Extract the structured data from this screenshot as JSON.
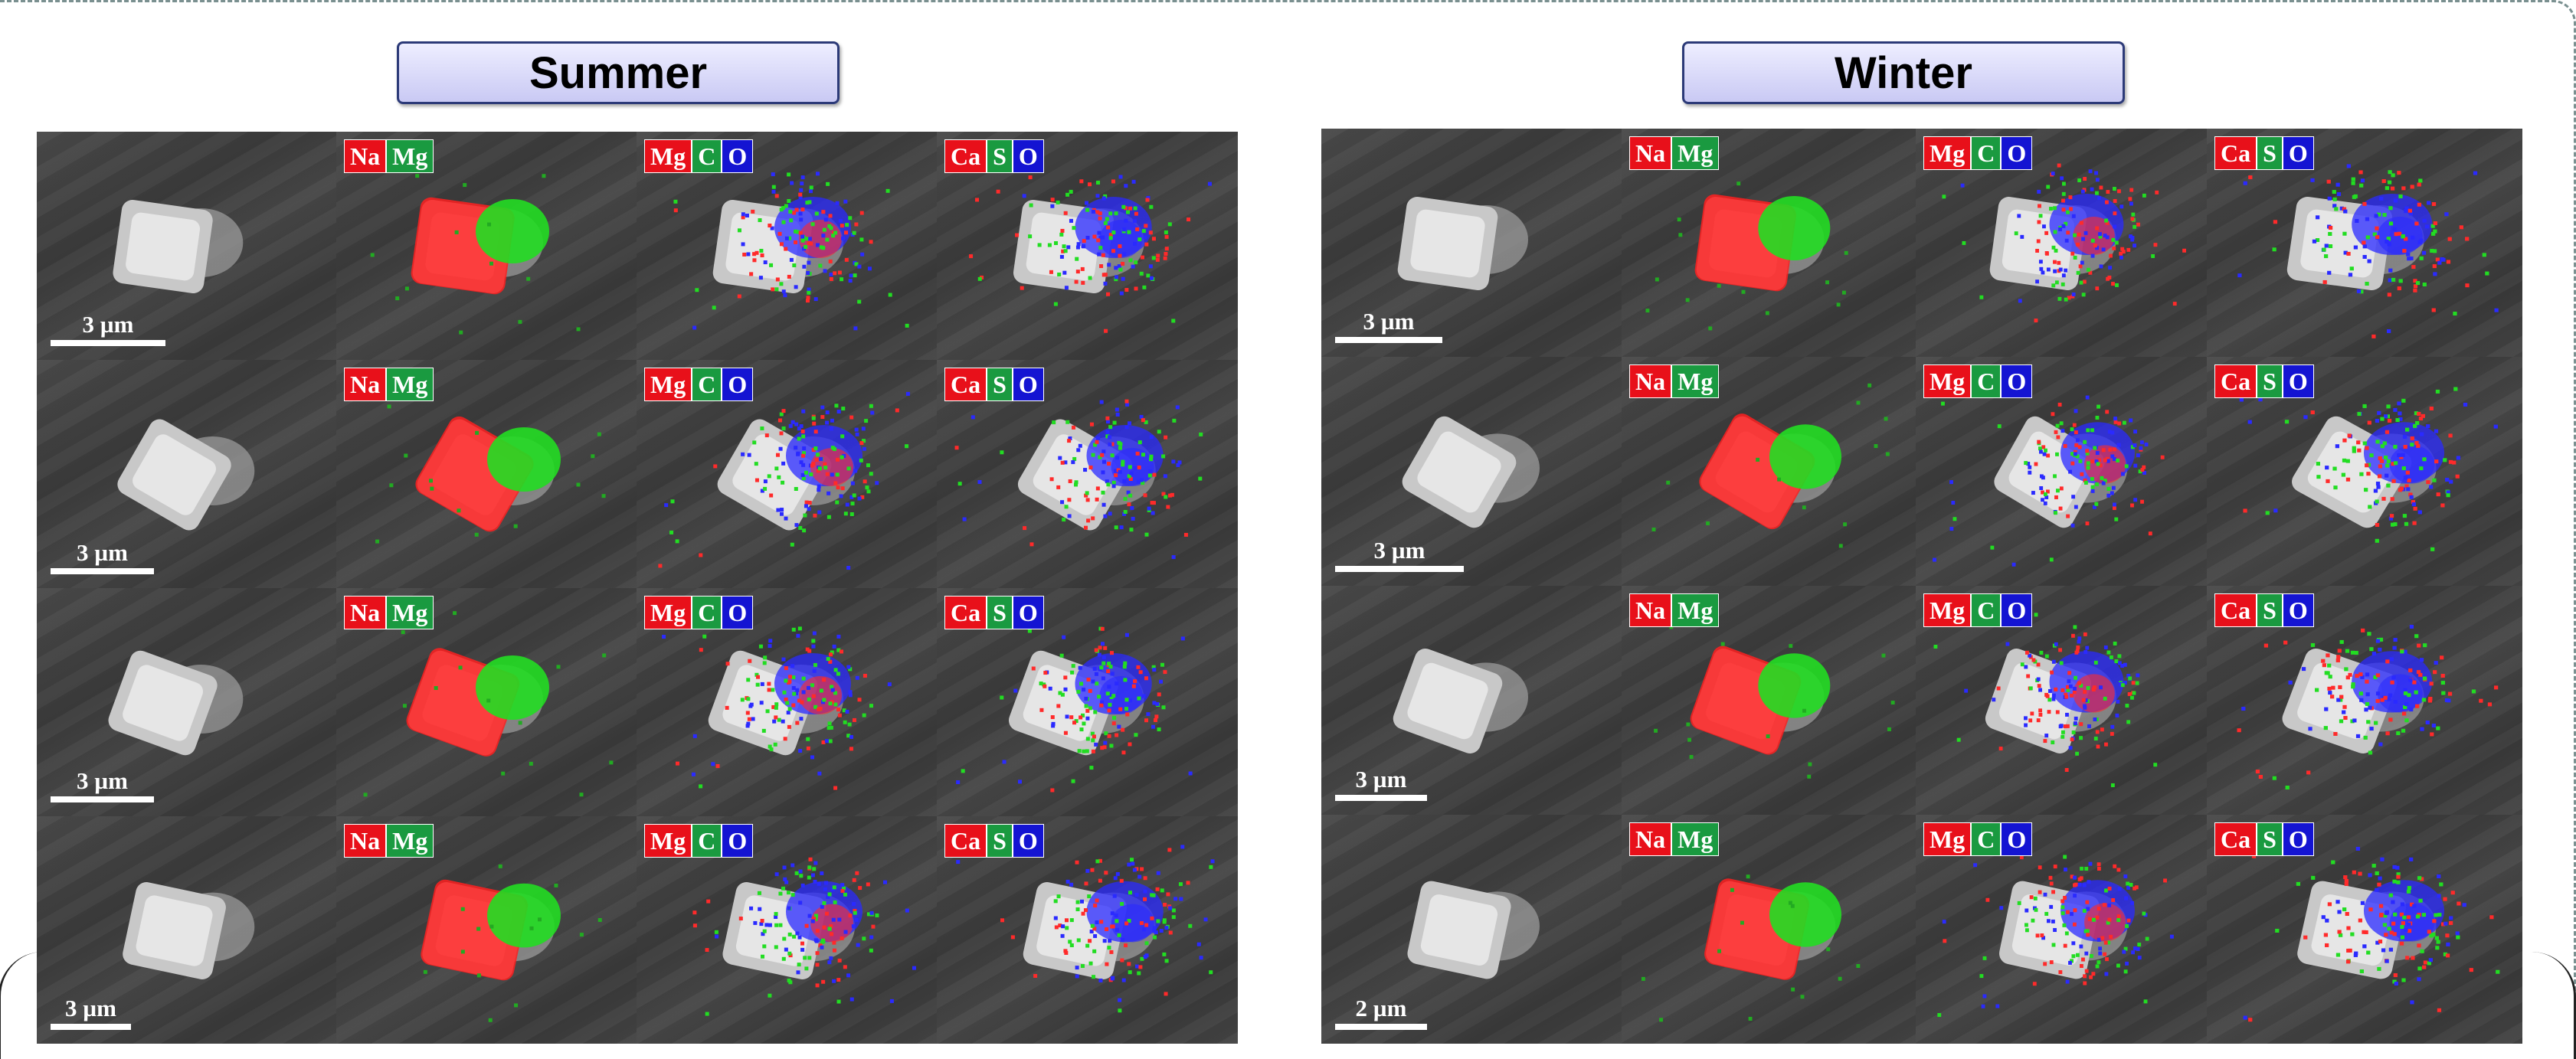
{
  "panels": [
    {
      "id": "summer",
      "title": "Summer",
      "rows": [
        {
          "scale": "3 µm"
        },
        {
          "scale": "3 µm"
        },
        {
          "scale": "3 µm"
        },
        {
          "scale": "3 µm"
        }
      ]
    },
    {
      "id": "winter",
      "title": "Winter",
      "rows": [
        {
          "scale": "3 µm"
        },
        {
          "scale": "3 µm"
        },
        {
          "scale": "3 µm"
        },
        {
          "scale": "2 µm"
        }
      ]
    }
  ],
  "map_legends": [
    {
      "elements": [
        {
          "symbol": "Na",
          "color": "#e8101a"
        },
        {
          "symbol": "Mg",
          "color": "#1a9a40"
        }
      ]
    },
    {
      "elements": [
        {
          "symbol": "Mg",
          "color": "#e8101a"
        },
        {
          "symbol": "C",
          "color": "#1a9a40"
        },
        {
          "symbol": "O",
          "color": "#1414d2"
        }
      ]
    },
    {
      "elements": [
        {
          "symbol": "Ca",
          "color": "#e8101a"
        },
        {
          "symbol": "S",
          "color": "#1a9a40"
        },
        {
          "symbol": "O",
          "color": "#1414d2"
        }
      ]
    }
  ],
  "colors": {
    "red": "#ff2a2a",
    "green": "#22dd22",
    "blue": "#2a2aff",
    "title_fill": "#d6d6f8",
    "title_border": "#2c3a78"
  }
}
